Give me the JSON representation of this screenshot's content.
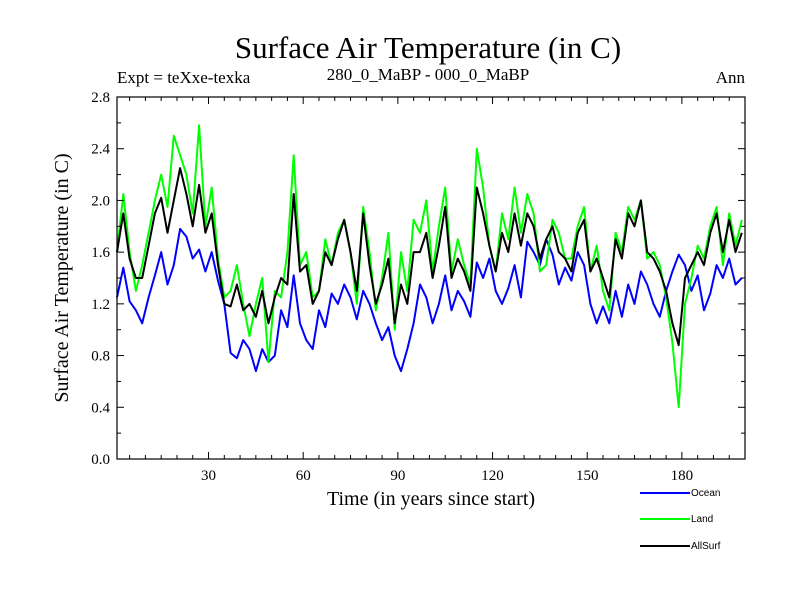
{
  "chart_data": {
    "type": "line",
    "title": "Surface Air Temperature (in C)",
    "left_label": "Expt = teXxe-texka",
    "center_label": "280_0_MaBP - 000_0_MaBP",
    "right_label": "Ann",
    "xlabel": "Time (in years since start)",
    "ylabel": "Surface Air Temperature (in C)",
    "xlim": [
      1,
      200
    ],
    "ylim": [
      0.0,
      2.8
    ],
    "xticks": [
      30,
      60,
      90,
      120,
      150,
      180
    ],
    "xtick_labels": [
      "30",
      "60",
      "90",
      "120",
      "150",
      "180"
    ],
    "yticks": [
      0.0,
      0.4,
      0.8,
      1.2,
      1.6,
      2.0,
      2.4,
      2.8
    ],
    "ytick_labels": [
      "0.0",
      "0.4",
      "0.8",
      "1.2",
      "1.6",
      "2.0",
      "2.4",
      "2.8"
    ],
    "x_start": 1,
    "x_step": 2,
    "series": [
      {
        "name": "Ocean",
        "color": "#0000ff",
        "values": [
          1.25,
          1.48,
          1.22,
          1.15,
          1.05,
          1.25,
          1.42,
          1.6,
          1.35,
          1.5,
          1.78,
          1.72,
          1.55,
          1.62,
          1.45,
          1.6,
          1.38,
          1.2,
          0.82,
          0.78,
          0.92,
          0.85,
          0.68,
          0.85,
          0.75,
          0.8,
          1.15,
          1.02,
          1.42,
          1.05,
          0.92,
          0.85,
          1.15,
          1.02,
          1.28,
          1.2,
          1.35,
          1.25,
          1.08,
          1.3,
          1.2,
          1.05,
          0.92,
          1.02,
          0.8,
          0.68,
          0.85,
          1.05,
          1.35,
          1.25,
          1.05,
          1.2,
          1.42,
          1.15,
          1.3,
          1.22,
          1.1,
          1.52,
          1.4,
          1.55,
          1.3,
          1.2,
          1.32,
          1.5,
          1.25,
          1.68,
          1.6,
          1.5,
          1.7,
          1.58,
          1.35,
          1.48,
          1.38,
          1.6,
          1.5,
          1.2,
          1.05,
          1.18,
          1.05,
          1.3,
          1.1,
          1.35,
          1.2,
          1.45,
          1.35,
          1.2,
          1.1,
          1.3,
          1.45,
          1.58,
          1.5,
          1.3,
          1.42,
          1.15,
          1.28,
          1.5,
          1.4,
          1.55,
          1.35,
          1.4
        ]
      },
      {
        "name": "Land",
        "color": "#00ff00",
        "values": [
          1.6,
          2.05,
          1.6,
          1.3,
          1.5,
          1.75,
          2.0,
          2.2,
          1.95,
          2.5,
          2.35,
          2.2,
          1.9,
          2.58,
          1.8,
          2.1,
          1.55,
          1.25,
          1.3,
          1.5,
          1.2,
          0.95,
          1.2,
          1.4,
          0.75,
          1.3,
          1.25,
          1.6,
          2.35,
          1.5,
          1.6,
          1.25,
          1.3,
          1.7,
          1.5,
          1.75,
          1.85,
          1.6,
          1.2,
          1.95,
          1.6,
          1.15,
          1.4,
          1.75,
          1.0,
          1.6,
          1.3,
          1.85,
          1.75,
          2.0,
          1.45,
          1.8,
          2.1,
          1.45,
          1.7,
          1.5,
          1.35,
          2.4,
          2.1,
          1.65,
          1.45,
          1.9,
          1.7,
          2.1,
          1.75,
          2.05,
          1.9,
          1.45,
          1.5,
          1.85,
          1.75,
          1.55,
          1.55,
          1.8,
          1.95,
          1.45,
          1.65,
          1.3,
          1.15,
          1.75,
          1.6,
          1.95,
          1.85,
          2.0,
          1.55,
          1.6,
          1.5,
          1.25,
          0.9,
          0.4,
          1.2,
          1.4,
          1.65,
          1.55,
          1.8,
          1.95,
          1.5,
          1.9,
          1.65,
          1.85
        ]
      },
      {
        "name": "AllSurf",
        "color": "#000000",
        "values": [
          1.6,
          1.9,
          1.55,
          1.4,
          1.4,
          1.65,
          1.9,
          2.02,
          1.75,
          2.0,
          2.25,
          2.05,
          1.8,
          2.12,
          1.75,
          1.9,
          1.5,
          1.2,
          1.18,
          1.35,
          1.15,
          1.2,
          1.1,
          1.3,
          1.05,
          1.25,
          1.4,
          1.35,
          2.05,
          1.45,
          1.5,
          1.2,
          1.3,
          1.6,
          1.5,
          1.7,
          1.85,
          1.6,
          1.3,
          1.9,
          1.5,
          1.2,
          1.35,
          1.55,
          1.05,
          1.35,
          1.2,
          1.6,
          1.6,
          1.75,
          1.4,
          1.65,
          1.95,
          1.4,
          1.55,
          1.45,
          1.3,
          2.1,
          1.9,
          1.65,
          1.45,
          1.75,
          1.6,
          1.9,
          1.65,
          1.9,
          1.8,
          1.55,
          1.7,
          1.8,
          1.6,
          1.55,
          1.45,
          1.75,
          1.85,
          1.45,
          1.55,
          1.4,
          1.25,
          1.7,
          1.55,
          1.9,
          1.8,
          2.0,
          1.6,
          1.55,
          1.45,
          1.3,
          1.05,
          0.88,
          1.4,
          1.5,
          1.6,
          1.5,
          1.75,
          1.9,
          1.6,
          1.85,
          1.6,
          1.75
        ]
      }
    ]
  },
  "legend": {
    "ocean": "Ocean",
    "land": "Land",
    "allsurf": "AllSurf"
  }
}
